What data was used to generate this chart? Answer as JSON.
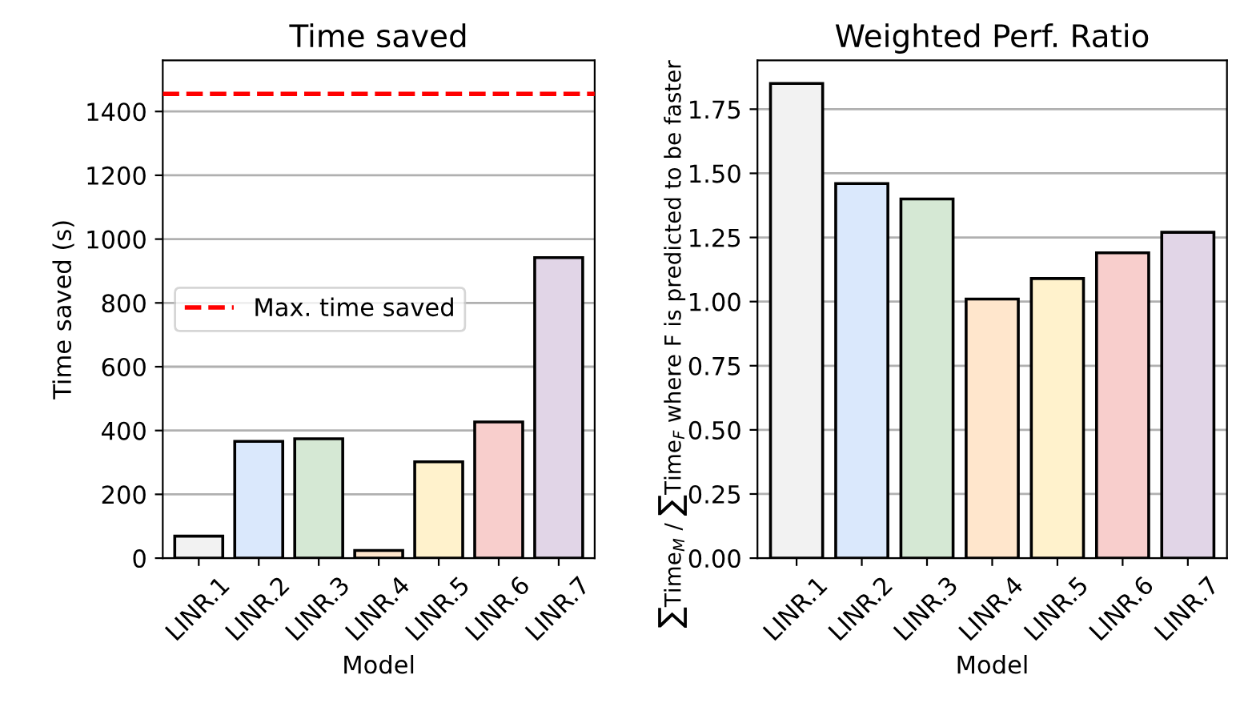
{
  "chart_data": [
    {
      "type": "bar",
      "title": "Time saved",
      "xlabel": "Model",
      "ylabel": "Time saved (s)",
      "categories": [
        "LINR.1",
        "LINR.2",
        "LINR.3",
        "LINR.4",
        "LINR.5",
        "LINR.6",
        "LINR.7"
      ],
      "values": [
        69,
        366,
        374,
        24,
        302,
        427,
        942
      ],
      "colors": [
        "#f2f2f2",
        "#dae8fc",
        "#d5e8d4",
        "#ffe6cc",
        "#fff2cc",
        "#f8cecc",
        "#e1d5e7"
      ],
      "ylim": [
        0,
        1560
      ],
      "yticks": [
        0,
        200,
        400,
        600,
        800,
        1000,
        1200,
        1400
      ],
      "ref_lines": [
        {
          "axis": "y",
          "value": 1455,
          "label": "Max. time saved",
          "color": "#ff0000",
          "line_style": "dashed"
        }
      ],
      "grid": "y",
      "legend": "center left"
    },
    {
      "type": "bar",
      "title": "Weighted Perf. Ratio",
      "xlabel": "Model",
      "ylabel": "∑Time$_{M}$ / ∑Time$_{F}$ where F is predicted to be faster",
      "categories": [
        "LINR.1",
        "LINR.2",
        "LINR.3",
        "LINR.4",
        "LINR.5",
        "LINR.6",
        "LINR.7"
      ],
      "values": [
        1.85,
        1.46,
        1.4,
        1.01,
        1.09,
        1.19,
        1.27
      ],
      "colors": [
        "#f2f2f2",
        "#dae8fc",
        "#d5e8d4",
        "#ffe6cc",
        "#fff2cc",
        "#f8cecc",
        "#e1d5e7"
      ],
      "ylim": [
        0,
        1.94
      ],
      "yticks": [
        {
          "value": 0,
          "label": "0.00"
        },
        0.25,
        {
          "value": 0.5,
          "label": "0.50"
        },
        0.75,
        {
          "value": 1,
          "label": "1.00"
        },
        1.25,
        {
          "value": 1.5,
          "label": "1.50"
        },
        1.75
      ],
      "grid": "y"
    }
  ]
}
